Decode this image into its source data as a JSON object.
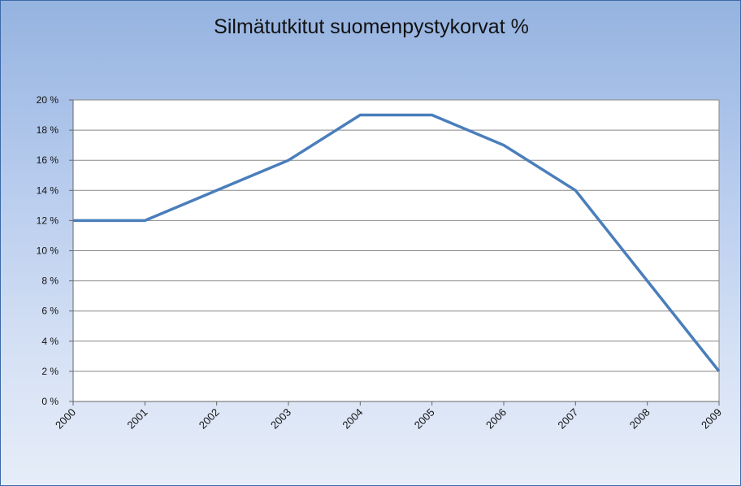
{
  "chart_data": {
    "type": "line",
    "title": "Silmätutkitut suomenpystykorvat %",
    "xlabel": "",
    "ylabel": "",
    "categories": [
      "2000",
      "2001",
      "2002",
      "2003",
      "2004",
      "2005",
      "2006",
      "2007",
      "2008",
      "2009"
    ],
    "series": [
      {
        "values": [
          12,
          12,
          14,
          16,
          19,
          19,
          17,
          14,
          8,
          2
        ]
      }
    ],
    "ylim": [
      0,
      20
    ],
    "y_ticks": [
      "0 %",
      "2 %",
      "4 %",
      "6 %",
      "8 %",
      "10 %",
      "12 %",
      "14 %",
      "16 %",
      "18 %",
      "20 %"
    ],
    "y_tick_values": [
      0,
      2,
      4,
      6,
      8,
      10,
      12,
      14,
      16,
      18,
      20
    ],
    "grid": true,
    "legend": "none",
    "colors": {
      "line": "#4a7ebb",
      "grid": "#888888",
      "plot_bg": "#ffffff"
    }
  }
}
